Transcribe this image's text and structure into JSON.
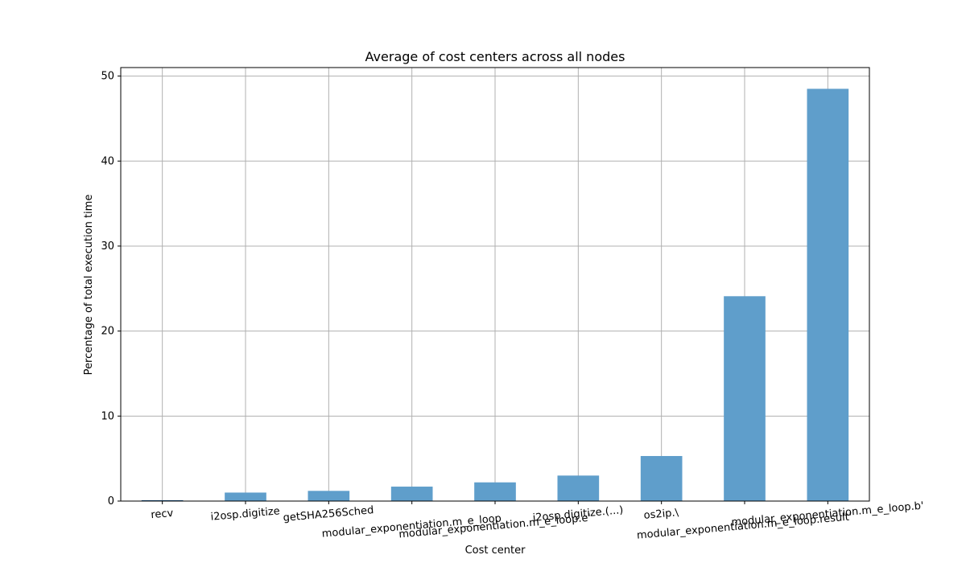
{
  "chart_data": {
    "type": "bar",
    "title": "Average of cost centers across all nodes",
    "xlabel": "Cost center",
    "ylabel": "Percentage of total execution time",
    "categories": [
      "recv",
      "i2osp.digitize",
      "getSHA256Sched",
      "modular_exponentiation.m_e_loop",
      "modular_exponentiation.m_e_loop.e'",
      "i2osp.digitize.(...)",
      "os2ip.\\",
      "modular_exponentiation.m_e_loop.result'",
      "modular_exponentiation.m_e_loop.b'"
    ],
    "values": [
      0.1,
      1.0,
      1.2,
      1.7,
      2.2,
      3.0,
      5.3,
      24.1,
      48.5
    ],
    "yticks": [
      0,
      10,
      20,
      30,
      40,
      50
    ],
    "ylim": [
      0,
      51
    ],
    "grid": true,
    "bar_color": "#5f9ecb",
    "bar_edge_color": "#1f5f99"
  }
}
